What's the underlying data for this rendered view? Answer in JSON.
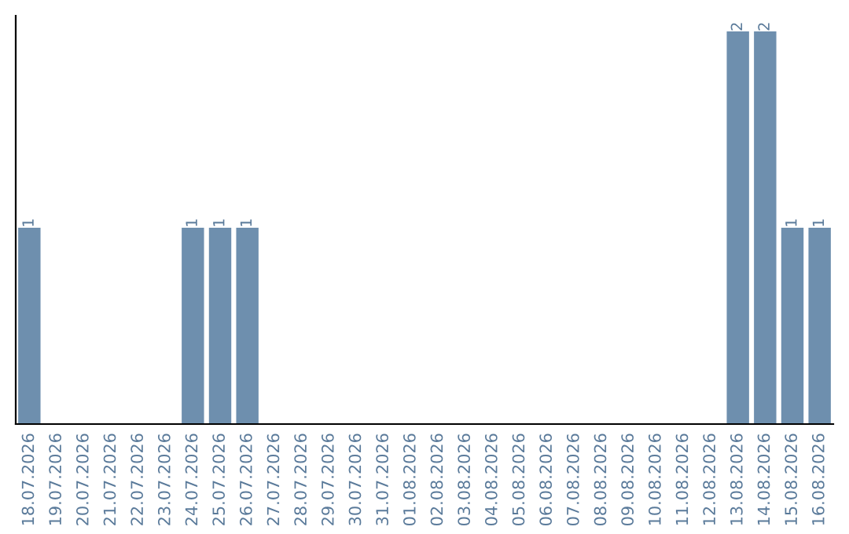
{
  "chart_data": {
    "type": "bar",
    "categories": [
      "18.07.2026",
      "19.07.2026",
      "20.07.2026",
      "21.07.2026",
      "22.07.2026",
      "23.07.2026",
      "24.07.2026",
      "25.07.2026",
      "26.07.2026",
      "27.07.2026",
      "28.07.2026",
      "29.07.2026",
      "30.07.2026",
      "31.07.2026",
      "01.08.2026",
      "02.08.2026",
      "03.08.2026",
      "04.08.2026",
      "05.08.2026",
      "06.08.2026",
      "07.08.2026",
      "08.08.2026",
      "09.08.2026",
      "10.08.2026",
      "11.08.2026",
      "12.08.2026",
      "13.08.2026",
      "14.08.2026",
      "15.08.2026",
      "16.08.2026"
    ],
    "values": [
      1,
      0,
      0,
      0,
      0,
      0,
      1,
      1,
      1,
      0,
      0,
      0,
      0,
      0,
      0,
      0,
      0,
      0,
      0,
      0,
      0,
      0,
      0,
      0,
      0,
      0,
      2,
      2,
      1,
      1
    ],
    "value_labels": [
      "1",
      null,
      null,
      null,
      null,
      null,
      "1",
      "1",
      "1",
      null,
      null,
      null,
      null,
      null,
      null,
      null,
      null,
      null,
      null,
      null,
      null,
      null,
      null,
      null,
      null,
      null,
      "2",
      "2",
      "1",
      "1"
    ],
    "color": "#6e8fae",
    "ylim": [
      0,
      2.08
    ],
    "tick_labels": "x",
    "grid": false,
    "legend": false
  }
}
